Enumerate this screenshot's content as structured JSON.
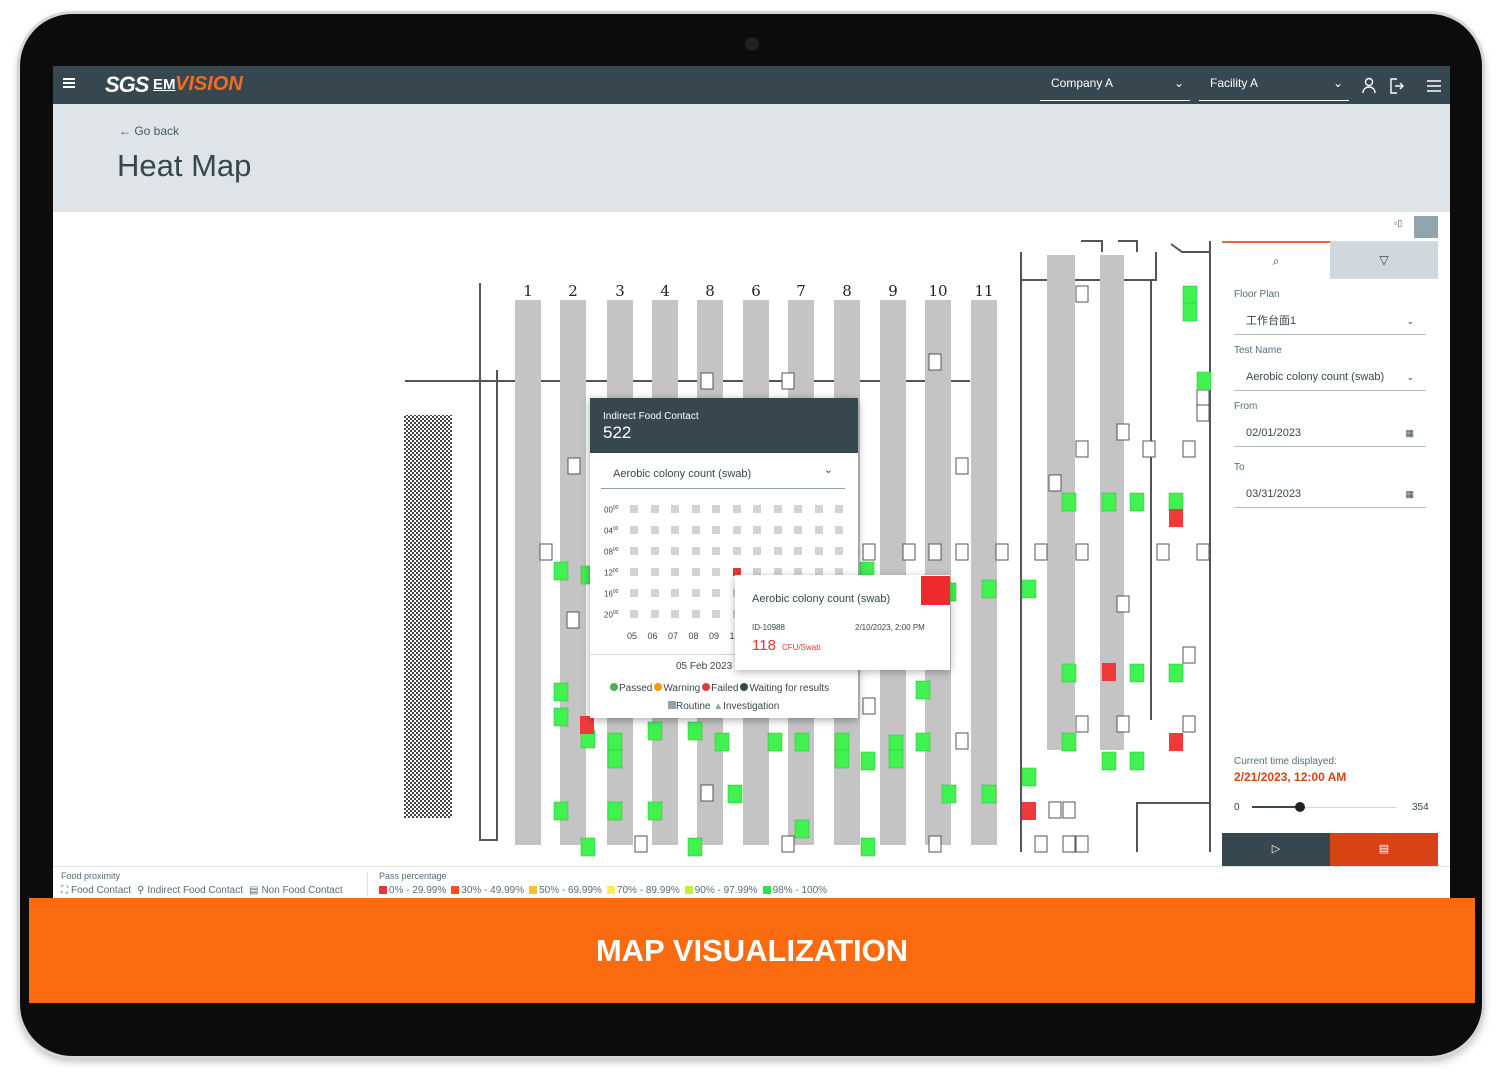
{
  "header": {
    "logo": "SGS",
    "brand_em": "EM",
    "brand_vision": "VISION",
    "company": "Company A",
    "facility": "Facility A"
  },
  "page": {
    "back_link": "Go back",
    "title": "Heat Map"
  },
  "floor_plan": {
    "line_labels": [
      "1",
      "2",
      "3",
      "4",
      "8",
      "6",
      "7",
      "8",
      "9",
      "10",
      "11"
    ]
  },
  "popup": {
    "title": "Indirect Food Contact",
    "count": 522,
    "test_select": "Aerobic colony count (swab)",
    "hours": [
      {
        "hour": "00",
        "minute": "00"
      },
      {
        "hour": "04",
        "minute": "00"
      },
      {
        "hour": "08",
        "minute": "00"
      },
      {
        "hour": "12",
        "minute": "00"
      },
      {
        "hour": "16",
        "minute": "00"
      },
      {
        "hour": "20",
        "minute": "00"
      }
    ],
    "days": [
      "05",
      "06",
      "07",
      "08",
      "09",
      "1"
    ],
    "date": "05 Feb 2023",
    "status_legend": [
      {
        "label": "Passed",
        "color": "#4caf50"
      },
      {
        "label": "Warning",
        "color": "#ff9800"
      },
      {
        "label": "Failed",
        "color": "#e53935"
      },
      {
        "label": "Waiting for results",
        "color": "#37474f"
      }
    ],
    "type_legend": [
      "Routine",
      "Investigation"
    ]
  },
  "tooltip": {
    "test": "Aerobic colony count (swab)",
    "id": "ID-10988",
    "datetime": "2/10/2023, 2:00 PM",
    "value": 118,
    "unit": "CFU/Swab"
  },
  "side_panel": {
    "fields": [
      {
        "label": "Floor Plan",
        "value": "工作台面1"
      },
      {
        "label": "Test Name",
        "value": "Aerobic colony count (swab)"
      },
      {
        "label": "From",
        "value": "02/01/2023"
      },
      {
        "label": "To",
        "value": "03/31/2023"
      }
    ],
    "current_time_label": "Current time displayed:",
    "current_time": "2/21/2023, 12:00 AM",
    "slider_min": 0,
    "slider_max": 354
  },
  "legend": {
    "proximity_title": "Food proximity",
    "proximity": [
      "Food Contact",
      "Indirect Food Contact",
      "Non Food Contact"
    ],
    "pass_title": "Pass percentage",
    "pass_ranges": [
      {
        "label": "0% - 29.99%",
        "color": "#e53935"
      },
      {
        "label": "30% - 49.99%",
        "color": "#f4511e"
      },
      {
        "label": "50% - 69.99%",
        "color": "#fbc02d"
      },
      {
        "label": "70% - 89.99%",
        "color": "#ffee58"
      },
      {
        "label": "90% - 97.99%",
        "color": "#c6ef3a"
      },
      {
        "label": "98% - 100%",
        "color": "#33e14a"
      }
    ]
  },
  "banner": "MAP VISUALIZATION"
}
